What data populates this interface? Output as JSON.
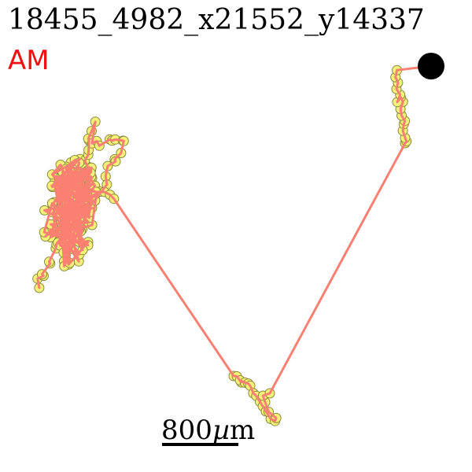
{
  "title": "18455_4982_x21552_y14337",
  "phase": {
    "label": "AM",
    "color": "#ee1111"
  },
  "scale_bar": {
    "value": "800",
    "unit_prefix": "µ",
    "unit_suffix": "m"
  },
  "colors": {
    "path": "#fa8072",
    "marker_fill": "#f4f17a",
    "marker_stroke": "#8a8a3a",
    "end_marker": "#000000",
    "scale_bar": "#000000"
  }
}
